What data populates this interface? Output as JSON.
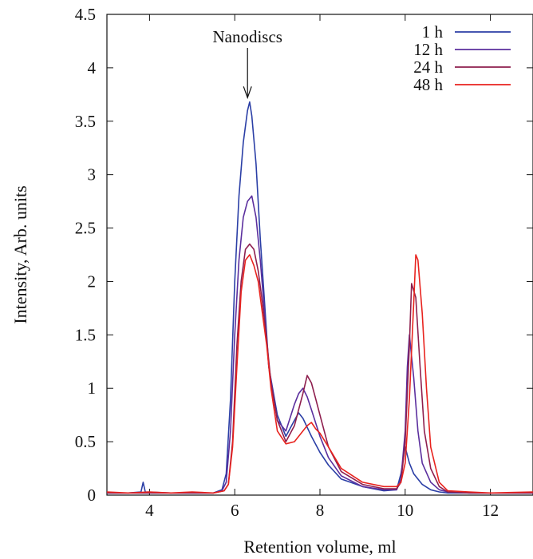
{
  "chart_data": {
    "type": "line",
    "xlabel": "Retention volume, ml",
    "ylabel": "Intensity, Arb. units",
    "xlim": [
      3,
      13
    ],
    "ylim": [
      0,
      4.5
    ],
    "xticks": [
      4,
      6,
      8,
      10,
      12
    ],
    "yticks": [
      0,
      0.5,
      1,
      1.5,
      2,
      2.5,
      3,
      3.5,
      4,
      4.5
    ],
    "xtick_labels": [
      "4",
      "6",
      "8",
      "10",
      "12"
    ],
    "ytick_labels": [
      "0",
      "0.5",
      "1",
      "1.5",
      "2",
      "2.5",
      "3",
      "3.5",
      "4",
      "4.5"
    ],
    "legend_position": "top-right",
    "annotation": {
      "text": "Nanodiscs",
      "x": 6.3,
      "y": 3.72
    },
    "series": [
      {
        "name": "1 h",
        "color": "#2b3fa6",
        "x": [
          3.0,
          3.5,
          3.8,
          3.85,
          3.9,
          4.5,
          5.0,
          5.5,
          5.7,
          5.8,
          5.9,
          6.0,
          6.1,
          6.2,
          6.3,
          6.35,
          6.4,
          6.5,
          6.6,
          6.7,
          6.8,
          7.0,
          7.2,
          7.4,
          7.5,
          7.6,
          7.8,
          8.0,
          8.2,
          8.5,
          9.0,
          9.5,
          9.8,
          9.9,
          10.0,
          10.1,
          10.2,
          10.3,
          10.4,
          10.6,
          10.8,
          11.0,
          11.5,
          12.0,
          13.0
        ],
        "y": [
          0.02,
          0.02,
          0.03,
          0.12,
          0.03,
          0.02,
          0.02,
          0.02,
          0.05,
          0.2,
          0.9,
          2.0,
          2.8,
          3.3,
          3.6,
          3.68,
          3.55,
          3.1,
          2.4,
          1.8,
          1.2,
          0.75,
          0.55,
          0.7,
          0.77,
          0.72,
          0.55,
          0.4,
          0.28,
          0.15,
          0.08,
          0.04,
          0.05,
          0.2,
          0.45,
          0.3,
          0.2,
          0.15,
          0.1,
          0.05,
          0.03,
          0.02,
          0.02,
          0.02,
          0.02
        ]
      },
      {
        "name": "12 h",
        "color": "#5b2f9e",
        "x": [
          3.0,
          3.5,
          4.0,
          4.5,
          5.0,
          5.5,
          5.7,
          5.8,
          5.9,
          6.0,
          6.1,
          6.2,
          6.3,
          6.4,
          6.5,
          6.6,
          6.7,
          6.8,
          7.0,
          7.2,
          7.4,
          7.5,
          7.6,
          7.7,
          7.8,
          8.0,
          8.2,
          8.5,
          9.0,
          9.5,
          9.8,
          9.9,
          10.0,
          10.05,
          10.1,
          10.2,
          10.3,
          10.4,
          10.6,
          10.8,
          11.0,
          11.5,
          12.0,
          13.0
        ],
        "y": [
          0.02,
          0.02,
          0.02,
          0.02,
          0.02,
          0.02,
          0.04,
          0.12,
          0.6,
          1.5,
          2.2,
          2.6,
          2.75,
          2.8,
          2.6,
          2.2,
          1.7,
          1.2,
          0.7,
          0.6,
          0.85,
          0.95,
          1.0,
          0.92,
          0.8,
          0.55,
          0.35,
          0.18,
          0.08,
          0.05,
          0.05,
          0.15,
          0.6,
          1.2,
          1.5,
          1.1,
          0.6,
          0.3,
          0.12,
          0.05,
          0.03,
          0.02,
          0.02,
          0.02
        ]
      },
      {
        "name": "24 h",
        "color": "#8e1f4e",
        "x": [
          3.0,
          3.5,
          4.0,
          4.5,
          5.0,
          5.5,
          5.75,
          5.85,
          5.95,
          6.05,
          6.15,
          6.25,
          6.35,
          6.45,
          6.55,
          6.65,
          6.75,
          6.85,
          7.0,
          7.2,
          7.4,
          7.6,
          7.7,
          7.8,
          7.9,
          8.0,
          8.2,
          8.5,
          9.0,
          9.5,
          9.8,
          9.9,
          10.0,
          10.1,
          10.15,
          10.25,
          10.35,
          10.45,
          10.6,
          10.8,
          11.0,
          11.5,
          12.0,
          13.0
        ],
        "y": [
          0.02,
          0.02,
          0.02,
          0.02,
          0.02,
          0.02,
          0.04,
          0.1,
          0.5,
          1.4,
          2.0,
          2.3,
          2.35,
          2.3,
          2.1,
          1.8,
          1.45,
          1.05,
          0.7,
          0.5,
          0.65,
          0.95,
          1.12,
          1.05,
          0.9,
          0.75,
          0.45,
          0.22,
          0.1,
          0.06,
          0.06,
          0.12,
          0.5,
          1.4,
          1.98,
          1.85,
          1.2,
          0.6,
          0.25,
          0.08,
          0.03,
          0.02,
          0.02,
          0.02
        ]
      },
      {
        "name": "48 h",
        "color": "#e8231e",
        "x": [
          3.0,
          3.5,
          4.0,
          4.5,
          5.0,
          5.5,
          5.75,
          5.85,
          5.95,
          6.05,
          6.15,
          6.25,
          6.35,
          6.45,
          6.55,
          6.65,
          6.75,
          6.85,
          7.0,
          7.2,
          7.4,
          7.6,
          7.7,
          7.8,
          7.9,
          8.0,
          8.2,
          8.5,
          9.0,
          9.5,
          9.8,
          9.9,
          10.0,
          10.1,
          10.2,
          10.25,
          10.3,
          10.4,
          10.5,
          10.6,
          10.8,
          11.0,
          11.5,
          12.0,
          13.0
        ],
        "y": [
          0.03,
          0.02,
          0.03,
          0.02,
          0.03,
          0.02,
          0.04,
          0.1,
          0.45,
          1.2,
          1.9,
          2.2,
          2.25,
          2.15,
          2.0,
          1.7,
          1.4,
          1.0,
          0.6,
          0.48,
          0.5,
          0.6,
          0.65,
          0.68,
          0.62,
          0.58,
          0.45,
          0.25,
          0.12,
          0.08,
          0.08,
          0.12,
          0.3,
          0.9,
          1.8,
          2.25,
          2.2,
          1.7,
          1.0,
          0.45,
          0.12,
          0.04,
          0.03,
          0.02,
          0.03
        ]
      }
    ]
  }
}
